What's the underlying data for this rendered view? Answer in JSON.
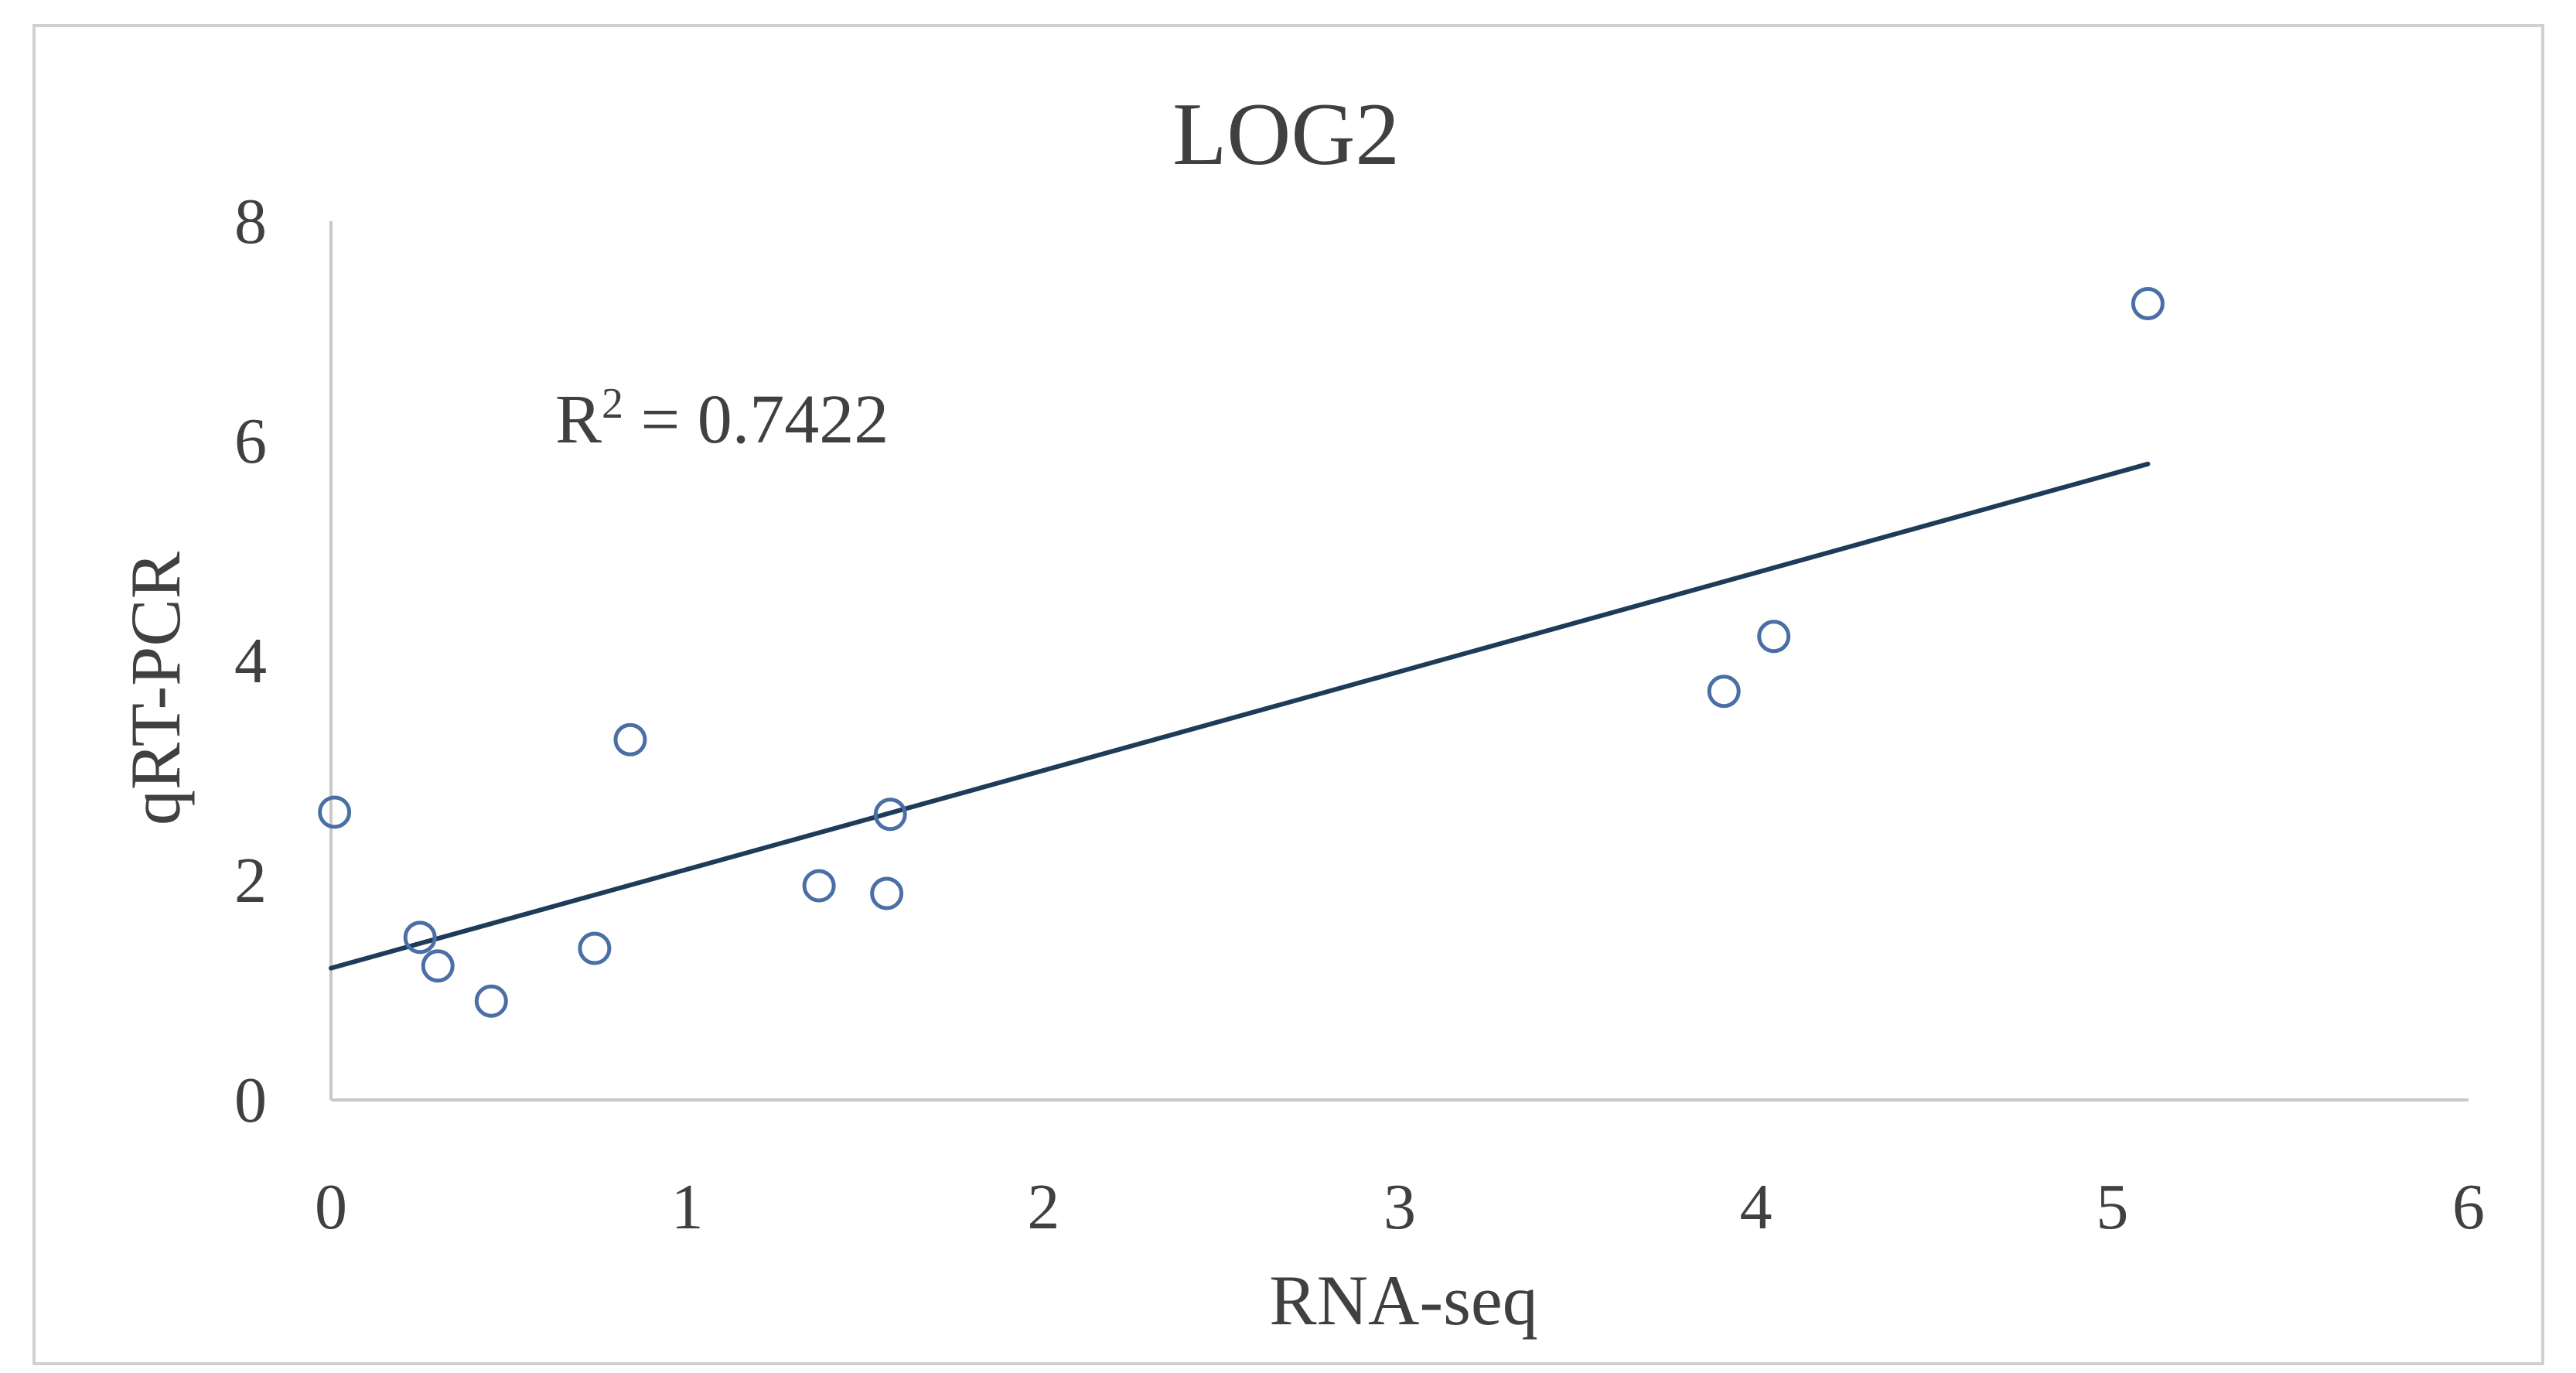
{
  "chart_data": {
    "type": "scatter",
    "title": "LOG2",
    "xlabel": "RNA-seq",
    "ylabel": "qRT-PCR",
    "xlim": [
      0,
      6
    ],
    "ylim": [
      0,
      8
    ],
    "x_ticks": [
      "0",
      "1",
      "2",
      "3",
      "4",
      "5",
      "6"
    ],
    "y_ticks": [
      "0",
      "2",
      "4",
      "6",
      "8"
    ],
    "grid": false,
    "legend": "none",
    "series": [
      {
        "points": [
          {
            "x": 0.01,
            "y": 2.62
          },
          {
            "x": 0.25,
            "y": 1.48
          },
          {
            "x": 0.3,
            "y": 1.22
          },
          {
            "x": 0.45,
            "y": 0.9
          },
          {
            "x": 0.74,
            "y": 1.38
          },
          {
            "x": 0.84,
            "y": 3.28
          },
          {
            "x": 1.37,
            "y": 1.95
          },
          {
            "x": 1.56,
            "y": 1.88
          },
          {
            "x": 1.57,
            "y": 2.6
          },
          {
            "x": 3.91,
            "y": 3.72
          },
          {
            "x": 4.05,
            "y": 4.22
          },
          {
            "x": 5.1,
            "y": 7.25
          }
        ]
      }
    ],
    "trendline": {
      "type": "linear",
      "x_range": [
        0,
        5.1
      ],
      "intercept": 1.2,
      "slope": 0.9,
      "annotation": {
        "base": "R",
        "superscript": "2",
        "text": " = 0.7422"
      }
    },
    "colors": {
      "marker_stroke": "#4a6fa5",
      "trendline": "#1f3b5a",
      "axis": "#c8c8c8",
      "text": "#404040",
      "frame": "#d0d0d0"
    }
  }
}
